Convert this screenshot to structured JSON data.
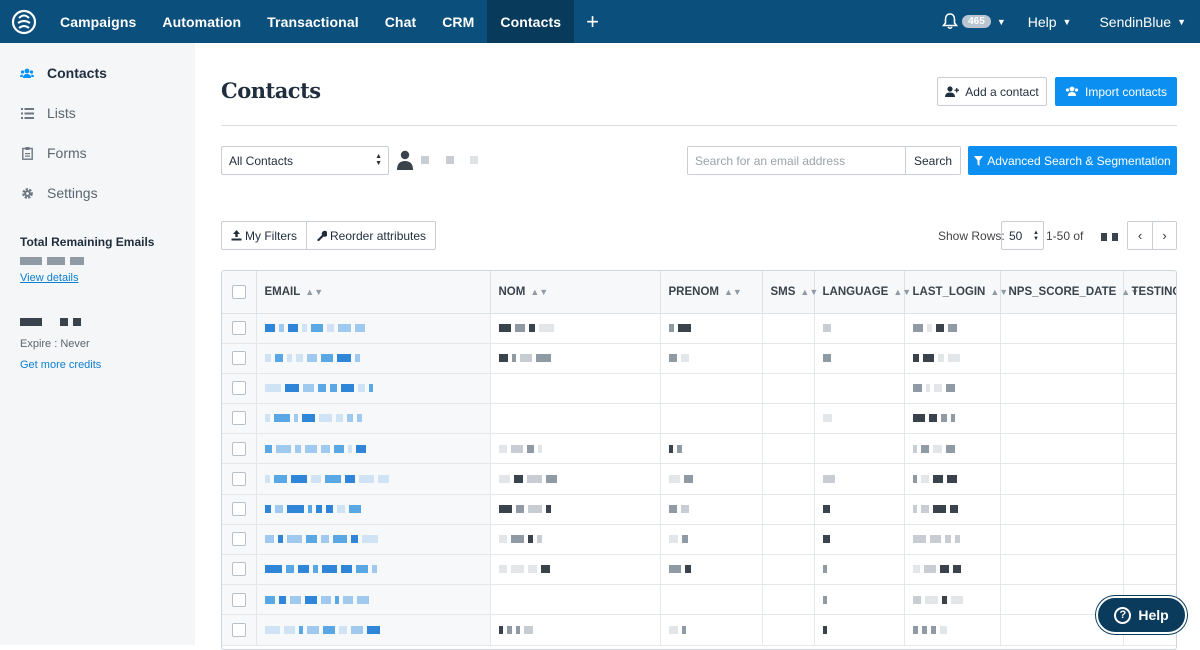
{
  "nav": {
    "items": [
      "Campaigns",
      "Automation",
      "Transactional",
      "Chat",
      "CRM",
      "Contacts"
    ],
    "active": "Contacts",
    "plus": "+",
    "notification_count": "465",
    "help": "Help",
    "account": "SendinBlue"
  },
  "sidebar": {
    "items": [
      {
        "label": "Contacts",
        "icon": "users-icon"
      },
      {
        "label": "Lists",
        "icon": "list-icon"
      },
      {
        "label": "Forms",
        "icon": "clipboard-icon"
      },
      {
        "label": "Settings",
        "icon": "gear-icon"
      }
    ],
    "remaining_title": "Total Remaining Emails",
    "view_details": "View details",
    "expire": "Expire : Never",
    "get_more_credits": "Get more credits"
  },
  "main": {
    "title": "Contacts",
    "add_contact": "Add a contact",
    "import_contacts": "Import contacts",
    "list_select": "All Contacts",
    "search_placeholder": "Search for an email address",
    "search_button": "Search",
    "advanced_search": "Advanced Search & Segmentation",
    "my_filters": "My Filters",
    "reorder_attributes": "Reorder attributes",
    "show_rows_label": "Show Rows:",
    "rows_value": "50",
    "range": "1-50 of"
  },
  "table": {
    "columns": [
      "EMAIL",
      "NOM",
      "PRENOM",
      "SMS",
      "LANGUAGE",
      "LAST_LOGIN",
      "NPS_SCORE_DATE",
      "TESTING"
    ]
  },
  "help_widget": "Help",
  "colors": {
    "nav_bg": "#0b4f7c",
    "accent": "#0b8ff0",
    "link": "#0d7fd1"
  }
}
